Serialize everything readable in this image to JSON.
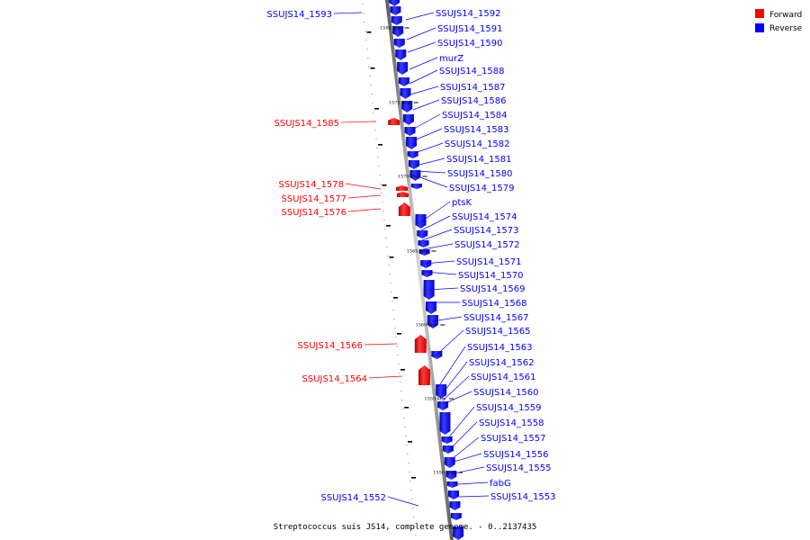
{
  "legend": {
    "forward": "Forward",
    "reverse": "Reverse",
    "colors": {
      "forward": "#ff0000",
      "reverse": "#0000ff"
    }
  },
  "caption": "Streptococcus suis JS14, complete genome. - 0..2137435",
  "ticks": [
    "1580 kbp",
    "1575 kbp",
    "1570 kbp",
    "1565 kbp",
    "1560 kbp",
    "1555 kbp",
    "1550 kbp"
  ],
  "reverse_labels": [
    "SSUJS14_1593",
    "SSUJS14_1592",
    "SSUJS14_1591",
    "SSUJS14_1590",
    "murZ",
    "SSUJS14_1588",
    "SSUJS14_1587",
    "SSUJS14_1586",
    "SSUJS14_1584",
    "SSUJS14_1583",
    "SSUJS14_1582",
    "SSUJS14_1581",
    "SSUJS14_1580",
    "SSUJS14_1579",
    "ptsK",
    "SSUJS14_1574",
    "SSUJS14_1573",
    "SSUJS14_1572",
    "SSUJS14_1571",
    "SSUJS14_1570",
    "SSUJS14_1569",
    "SSUJS14_1568",
    "SSUJS14_1567",
    "SSUJS14_1565",
    "SSUJS14_1563",
    "SSUJS14_1562",
    "SSUJS14_1561",
    "SSUJS14_1560",
    "SSUJS14_1559",
    "SSUJS14_1558",
    "SSUJS14_1557",
    "SSUJS14_1556",
    "SSUJS14_1555",
    "fabG",
    "SSUJS14_1553",
    "SSUJS14_1552"
  ],
  "forward_labels": [
    "SSUJS14_1585",
    "SSUJS14_1578",
    "SSUJS14_1577",
    "SSUJS14_1576",
    "SSUJS14_1566",
    "SSUJS14_1564"
  ]
}
